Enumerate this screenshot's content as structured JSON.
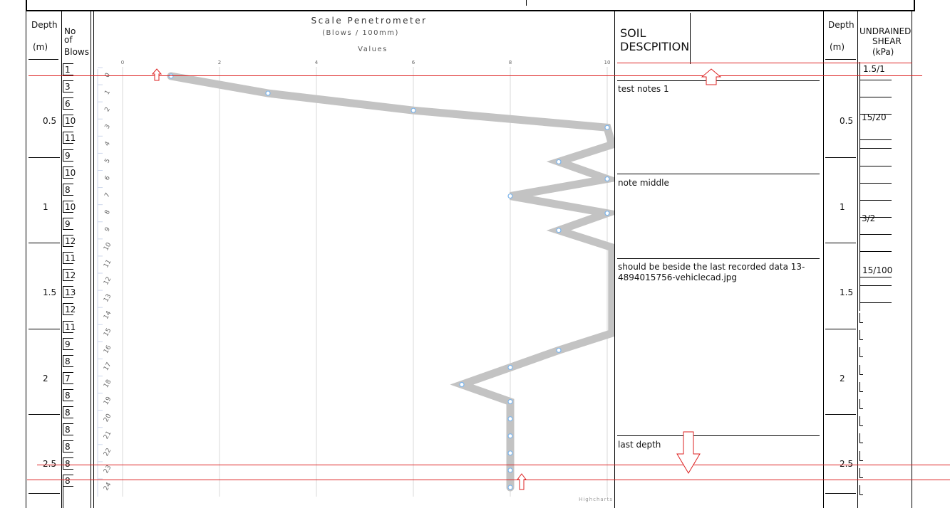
{
  "header": {
    "depth_label": "Depth",
    "depth_unit": "(m)",
    "blows_label_1": "No",
    "blows_label_2": "of",
    "blows_label_3": "Blows",
    "soil_label_1": "SOIL",
    "soil_label_2": "DESCPITION",
    "depth_label_right": "Depth",
    "depth_unit_right": "(m)",
    "shear_label_1": "UNDRAINED",
    "shear_label_2": "SHEAR",
    "shear_label_3": "(kPa)"
  },
  "depth_marks": [
    "0.5",
    "1",
    "1.5",
    "2",
    "2.5"
  ],
  "blows": [
    "1",
    "3",
    "6",
    "10",
    "11",
    "9",
    "10",
    "8",
    "10",
    "9",
    "12",
    "11",
    "12",
    "13",
    "12",
    "11",
    "9",
    "8",
    "7",
    "8",
    "8",
    "8",
    "8",
    "8",
    "8"
  ],
  "notes": [
    "test notes 1",
    "note middle",
    "should be beside the last recorded data 13-4894015756-vehiclecad.jpg",
    "last depth"
  ],
  "shear": [
    "1.5/1",
    "15/20",
    "3/2",
    "15/100"
  ],
  "credit": "Highcharts",
  "chart_data": {
    "type": "line",
    "title": "Scale Penetrometer",
    "subtitle": "(Blows / 100mm)",
    "xlabel": "Values",
    "xlim": [
      0,
      10
    ],
    "x_ticks": [
      "0",
      "2",
      "4",
      "6",
      "8",
      "10"
    ],
    "ylim": [
      0,
      24
    ],
    "y_ticks": [
      "0",
      "1",
      "2",
      "3",
      "4",
      "5",
      "6",
      "7",
      "8",
      "9",
      "10",
      "11",
      "12",
      "13",
      "14",
      "15",
      "16",
      "17",
      "18",
      "19",
      "20",
      "21",
      "22",
      "23",
      "24"
    ],
    "series": [
      {
        "depth": [
          0,
          1,
          2,
          3,
          4,
          5,
          6,
          7,
          8,
          9,
          10,
          11,
          12,
          13,
          14,
          15,
          16,
          17,
          18,
          19,
          20,
          21,
          22,
          23,
          24
        ],
        "values": [
          1,
          3,
          6,
          10,
          11,
          9,
          10,
          8,
          10,
          9,
          12,
          11,
          12,
          13,
          12,
          11,
          9,
          8,
          7,
          8,
          8,
          8,
          8,
          8,
          8
        ]
      }
    ],
    "line_color": "#c3c3c3",
    "marker_color": "#7cb5ec",
    "grid": true
  }
}
